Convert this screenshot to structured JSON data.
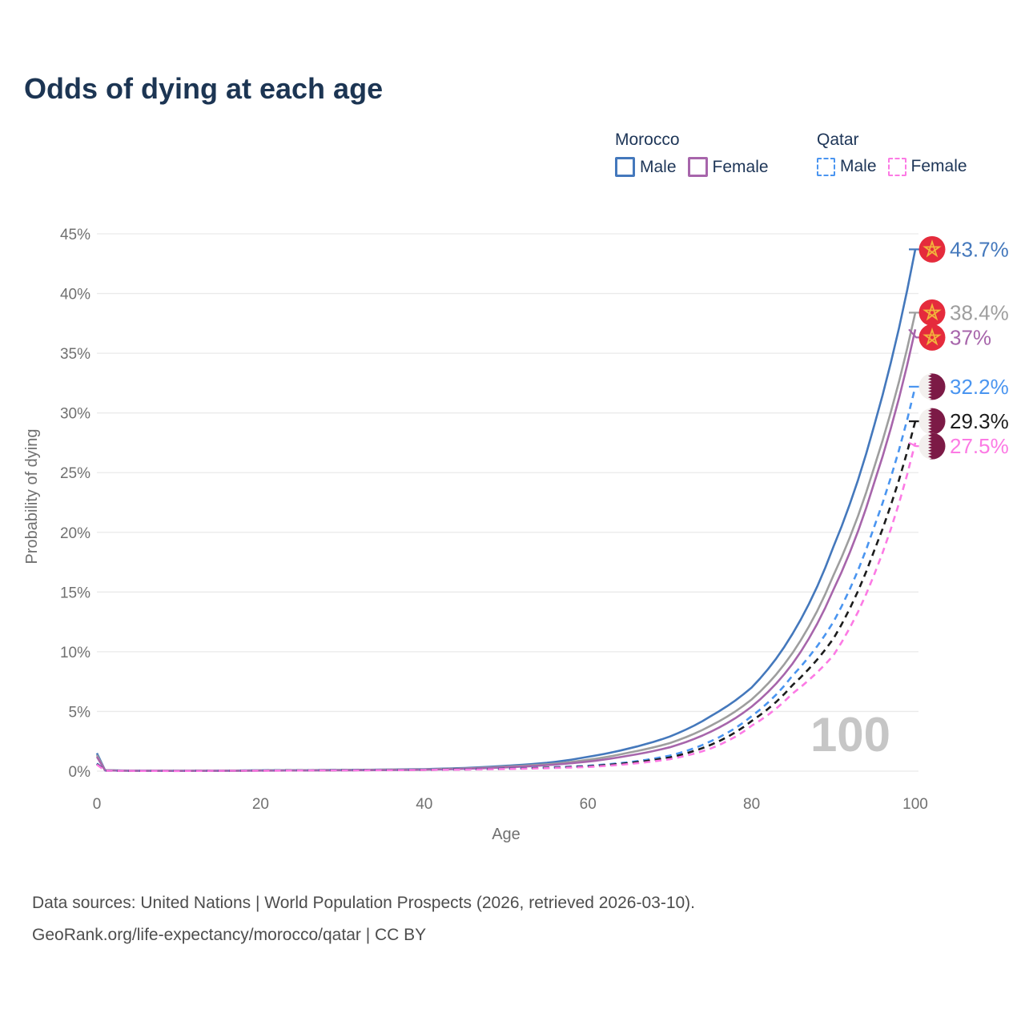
{
  "title": "Odds of dying at each age",
  "legend": {
    "groups": [
      {
        "country": "Morocco",
        "line_style": "solid",
        "underline_color": "#9a9a9a",
        "items": [
          {
            "label": "Male",
            "color": "#4478bc",
            "box_style": "solid"
          },
          {
            "label": "Female",
            "color": "#a765ab",
            "box_style": "solid"
          }
        ]
      },
      {
        "country": "Qatar",
        "line_style": "dashed",
        "underline_color": "#151515",
        "items": [
          {
            "label": "Male",
            "color": "#4a95f0",
            "box_style": "dashed"
          },
          {
            "label": "Female",
            "color": "#fc7ae4",
            "box_style": "dashed"
          }
        ]
      }
    ]
  },
  "watermark": "100",
  "footer": {
    "line1": "Data sources: United Nations | World Population Prospects (2026, retrieved 2026-03-10).",
    "line2": "GeoRank.org/life-expectancy/morocco/qatar | CC BY"
  },
  "chart_data": {
    "type": "line",
    "title": "Odds of dying at each age",
    "xlabel": "Age",
    "ylabel": "Probability of dying",
    "xlim": [
      0,
      100
    ],
    "ylim": [
      0,
      45
    ],
    "x_ticks": [
      0,
      20,
      40,
      60,
      80,
      100
    ],
    "y_ticks": [
      "0%",
      "5%",
      "10%",
      "15%",
      "20%",
      "25%",
      "30%",
      "35%",
      "40%",
      "45%"
    ],
    "grid": "horizontal",
    "legend_position": "top-right",
    "colors": {
      "grid": "#eaeaea",
      "tick_text": "#707070",
      "watermark": "#c6c6c6",
      "morocco_flag_red": "#e52b3c",
      "morocco_flag_star": "#f2b43c",
      "qatar_flag_maroon": "#7c1a46"
    },
    "series": [
      {
        "name": "Morocco Male",
        "country": "Morocco",
        "sex": "male",
        "flag": "morocco",
        "color": "#4478bc",
        "dash": false,
        "end_label": "43.7%",
        "end_value": 43.7,
        "points": [
          [
            0,
            1.5
          ],
          [
            1,
            0.08
          ],
          [
            5,
            0.04
          ],
          [
            10,
            0.03
          ],
          [
            15,
            0.04
          ],
          [
            20,
            0.07
          ],
          [
            25,
            0.08
          ],
          [
            30,
            0.1
          ],
          [
            35,
            0.13
          ],
          [
            40,
            0.17
          ],
          [
            45,
            0.27
          ],
          [
            50,
            0.45
          ],
          [
            55,
            0.7
          ],
          [
            60,
            1.2
          ],
          [
            65,
            1.9
          ],
          [
            70,
            2.9
          ],
          [
            75,
            4.6
          ],
          [
            80,
            7.0
          ],
          [
            85,
            11.5
          ],
          [
            90,
            18.8
          ],
          [
            95,
            29.0
          ],
          [
            100,
            43.7
          ]
        ]
      },
      {
        "name": "Morocco (all)",
        "country": "Morocco",
        "sex": "all",
        "flag": "morocco",
        "color": "#9e9e9e",
        "dash": false,
        "end_label": "38.4%",
        "end_value": 38.4,
        "points": [
          [
            0,
            1.35
          ],
          [
            1,
            0.07
          ],
          [
            5,
            0.035
          ],
          [
            10,
            0.025
          ],
          [
            15,
            0.035
          ],
          [
            20,
            0.06
          ],
          [
            25,
            0.07
          ],
          [
            30,
            0.09
          ],
          [
            35,
            0.12
          ],
          [
            40,
            0.15
          ],
          [
            45,
            0.23
          ],
          [
            50,
            0.38
          ],
          [
            55,
            0.58
          ],
          [
            60,
            0.95
          ],
          [
            65,
            1.55
          ],
          [
            70,
            2.35
          ],
          [
            75,
            3.8
          ],
          [
            80,
            6.0
          ],
          [
            85,
            9.9
          ],
          [
            90,
            16.4
          ],
          [
            95,
            25.5
          ],
          [
            100,
            38.4
          ]
        ]
      },
      {
        "name": "Morocco Female",
        "country": "Morocco",
        "sex": "female",
        "flag": "morocco",
        "color": "#a765ab",
        "dash": false,
        "end_label": "37%",
        "end_value": 37.0,
        "points": [
          [
            0,
            1.2
          ],
          [
            1,
            0.06
          ],
          [
            5,
            0.03
          ],
          [
            10,
            0.02
          ],
          [
            15,
            0.03
          ],
          [
            20,
            0.045
          ],
          [
            25,
            0.055
          ],
          [
            30,
            0.07
          ],
          [
            35,
            0.09
          ],
          [
            40,
            0.12
          ],
          [
            45,
            0.2
          ],
          [
            50,
            0.32
          ],
          [
            55,
            0.5
          ],
          [
            60,
            0.8
          ],
          [
            65,
            1.3
          ],
          [
            70,
            2.0
          ],
          [
            75,
            3.3
          ],
          [
            80,
            5.4
          ],
          [
            85,
            9.0
          ],
          [
            90,
            15.2
          ],
          [
            95,
            24.2
          ],
          [
            100,
            37.0
          ]
        ]
      },
      {
        "name": "Qatar Male",
        "country": "Qatar",
        "sex": "male",
        "flag": "qatar",
        "color": "#4a95f0",
        "dash": true,
        "end_label": "32.2%",
        "end_value": 32.2,
        "points": [
          [
            0,
            0.65
          ],
          [
            1,
            0.05
          ],
          [
            5,
            0.025
          ],
          [
            10,
            0.02
          ],
          [
            15,
            0.04
          ],
          [
            20,
            0.06
          ],
          [
            25,
            0.075
          ],
          [
            30,
            0.09
          ],
          [
            35,
            0.1
          ],
          [
            40,
            0.12
          ],
          [
            45,
            0.16
          ],
          [
            50,
            0.22
          ],
          [
            55,
            0.3
          ],
          [
            60,
            0.45
          ],
          [
            65,
            0.75
          ],
          [
            70,
            1.3
          ],
          [
            75,
            2.5
          ],
          [
            80,
            4.6
          ],
          [
            85,
            8.0
          ],
          [
            90,
            12.5
          ],
          [
            95,
            20.5
          ],
          [
            100,
            32.2
          ]
        ]
      },
      {
        "name": "Qatar (all)",
        "country": "Qatar",
        "sex": "all",
        "flag": "qatar",
        "color": "#1c1c1c",
        "dash": true,
        "end_label": "29.3%",
        "end_value": 29.3,
        "points": [
          [
            0,
            0.6
          ],
          [
            1,
            0.045
          ],
          [
            5,
            0.022
          ],
          [
            10,
            0.018
          ],
          [
            15,
            0.035
          ],
          [
            20,
            0.05
          ],
          [
            25,
            0.065
          ],
          [
            30,
            0.08
          ],
          [
            35,
            0.09
          ],
          [
            40,
            0.11
          ],
          [
            45,
            0.15
          ],
          [
            50,
            0.2
          ],
          [
            55,
            0.28
          ],
          [
            60,
            0.4
          ],
          [
            65,
            0.68
          ],
          [
            70,
            1.15
          ],
          [
            75,
            2.2
          ],
          [
            80,
            4.2
          ],
          [
            85,
            7.2
          ],
          [
            90,
            11.1
          ],
          [
            95,
            18.5
          ],
          [
            100,
            29.3
          ]
        ]
      },
      {
        "name": "Qatar Female",
        "country": "Qatar",
        "sex": "female",
        "flag": "qatar",
        "color": "#fc7ae4",
        "dash": true,
        "end_label": "27.5%",
        "end_value": 27.5,
        "points": [
          [
            0,
            0.55
          ],
          [
            1,
            0.04
          ],
          [
            5,
            0.02
          ],
          [
            10,
            0.015
          ],
          [
            15,
            0.03
          ],
          [
            20,
            0.04
          ],
          [
            25,
            0.055
          ],
          [
            30,
            0.07
          ],
          [
            35,
            0.08
          ],
          [
            40,
            0.1
          ],
          [
            45,
            0.13
          ],
          [
            50,
            0.18
          ],
          [
            55,
            0.25
          ],
          [
            60,
            0.35
          ],
          [
            65,
            0.6
          ],
          [
            70,
            1.0
          ],
          [
            75,
            1.9
          ],
          [
            80,
            3.8
          ],
          [
            85,
            6.5
          ],
          [
            90,
            9.7
          ],
          [
            95,
            16.5
          ],
          [
            100,
            27.5
          ]
        ]
      }
    ]
  }
}
